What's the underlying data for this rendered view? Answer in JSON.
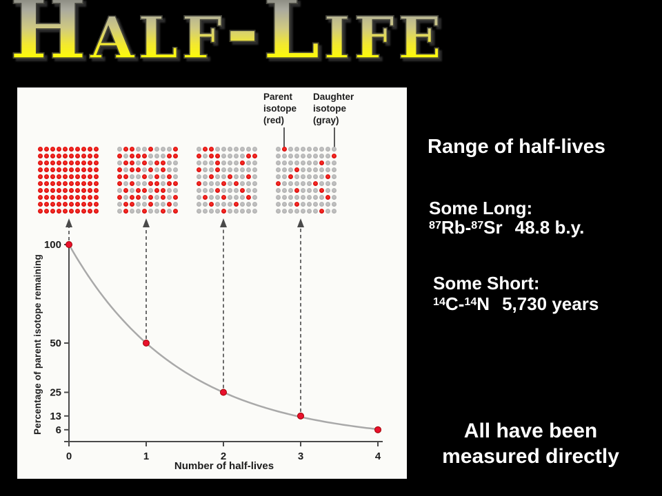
{
  "title": "Half-Life",
  "colors": {
    "slide_bg": "#000000",
    "panel_bg": "#fbfbf8",
    "parent_red": "#e01010",
    "daughter_gray": "#b5b5b5",
    "curve_gray": "#a9a9a9",
    "axis_dark": "#4a4a4a",
    "title_yellow": "#ffff00",
    "text_white": "#ffffff"
  },
  "figure": {
    "legend": {
      "parent_label": "Parent\nisotope\n(red)",
      "daughter_label": "Daughter\nisotope\n(gray)"
    },
    "grids": [
      {
        "half_lives": 0,
        "percent_remaining": 100,
        "red_count": 100,
        "red_cells": "all"
      },
      {
        "half_lives": 1,
        "percent_remaining": 50,
        "red_count": 50,
        "red_cells": [
          1,
          2,
          5,
          9,
          10,
          12,
          13,
          14,
          18,
          19,
          21,
          22,
          24,
          26,
          27,
          30,
          32,
          33,
          35,
          37,
          40,
          41,
          44,
          46,
          48,
          50,
          52,
          55,
          56,
          58,
          59,
          61,
          63,
          64,
          66,
          67,
          70,
          72,
          73,
          75,
          77,
          79,
          81,
          82,
          85,
          88,
          91,
          94,
          97,
          99
        ]
      },
      {
        "half_lives": 2,
        "percent_remaining": 25,
        "red_count": 25,
        "red_cells": [
          1,
          2,
          10,
          12,
          13,
          18,
          19,
          23,
          27,
          30,
          33,
          42,
          45,
          48,
          50,
          54,
          56,
          63,
          67,
          71,
          74,
          78,
          82,
          86,
          94
        ]
      },
      {
        "half_lives": 3,
        "percent_remaining": 13,
        "red_count": 13,
        "red_cells": [
          1,
          19,
          27,
          33,
          42,
          48,
          50,
          56,
          63,
          67,
          78,
          83,
          97
        ]
      }
    ]
  },
  "chart_data": {
    "type": "line",
    "title": "",
    "x": [
      0,
      1,
      2,
      3,
      4
    ],
    "y": [
      100,
      50,
      25,
      13,
      6
    ],
    "x_ticks": [
      0,
      1,
      2,
      3,
      4
    ],
    "y_ticks": [
      100,
      50,
      25,
      13,
      6
    ],
    "xlabel": "Number of half-lives",
    "ylabel": "Percentage of parent isotope remaining",
    "xlim": [
      0,
      4
    ],
    "ylim": [
      0,
      100
    ],
    "curve": "exponential decay: y = 100 * (1/2)^x",
    "grid": "off",
    "line_color": "#a9a9a9",
    "point_color": "#e8112d",
    "annotations": "dashed arrows rise from points at x=0,1,2,3 to the four dot grids above"
  },
  "right_panel": {
    "heading": "Range of half-lives",
    "long": {
      "heading": "Some Long:",
      "sup1": "87",
      "base1": "Rb-",
      "sup2": "87",
      "base2": "Sr",
      "value": "48.8 b.y."
    },
    "short": {
      "heading": "Some Short:",
      "sup1": "14",
      "base1": "C-",
      "sup2": "14",
      "base2": "N",
      "value": "5,730 years"
    },
    "footer": {
      "line1": "All have been",
      "line2": "measured directly"
    }
  }
}
